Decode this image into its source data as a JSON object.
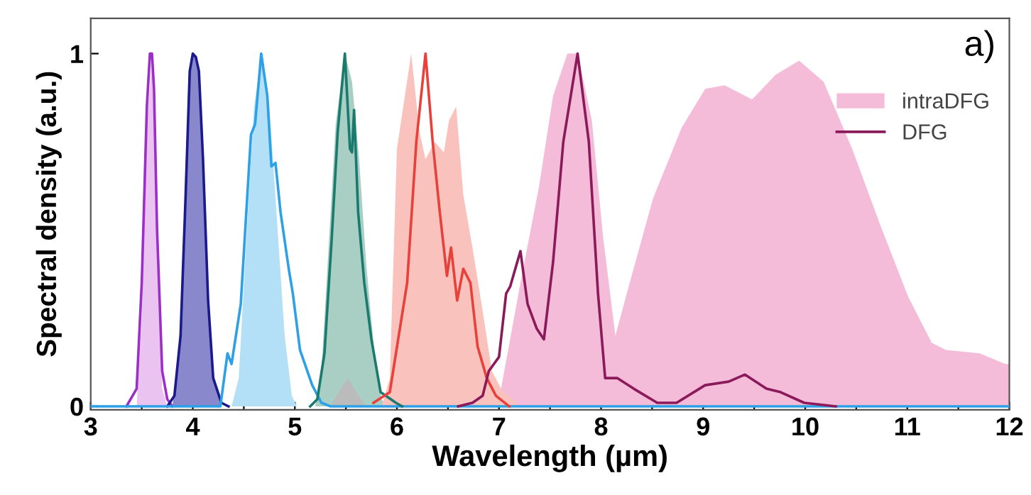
{
  "chart_data": {
    "type": "area",
    "xlabel": "Wavelength (µm)",
    "ylabel": "Spectral density (a.u.)",
    "annotations": [
      "a)"
    ],
    "xlim": [
      3,
      12
    ],
    "ylim": [
      -0.01,
      1.1
    ],
    "xticks": [
      3,
      {
        "value": 3.5,
        "label": null
      },
      4,
      {
        "value": 4.5,
        "label": null
      },
      5,
      {
        "value": 5.5,
        "label": null
      },
      6,
      {
        "value": 6.5,
        "label": null
      },
      7,
      {
        "value": 7.5,
        "label": null
      },
      8,
      {
        "value": 8.5,
        "label": null
      },
      9,
      {
        "value": 9.5,
        "label": null
      },
      10,
      {
        "value": 10.5,
        "label": null
      },
      11,
      {
        "value": 11.5,
        "label": null
      },
      12
    ],
    "yticks": [
      0,
      1
    ],
    "grid": false,
    "legend": "top right",
    "series": [
      {
        "name": "intraDFG",
        "color": "#f4bcd8",
        "x": [
          7.0,
          7.02,
          7.21,
          7.39,
          7.53,
          7.67,
          7.77,
          7.91,
          8.02,
          8.14,
          8.28,
          8.51,
          8.79,
          9.02,
          9.21,
          9.48,
          9.71,
          9.94,
          10.18,
          10.46,
          10.74,
          11.01,
          11.24,
          11.38,
          11.71,
          11.96,
          12.0
        ],
        "values": [
          0,
          0.05,
          0.35,
          0.62,
          0.88,
          1.0,
          1.0,
          0.81,
          0.48,
          0.2,
          0.35,
          0.59,
          0.79,
          0.9,
          0.91,
          0.87,
          0.94,
          0.98,
          0.92,
          0.73,
          0.51,
          0.31,
          0.18,
          0.16,
          0.15,
          0.12,
          0.12
        ]
      },
      {
        "color": "#ebc3f0",
        "x": [
          3.45,
          3.5,
          3.55,
          3.6,
          3.65,
          3.7,
          3.75
        ],
        "values": [
          0,
          0.25,
          0.8,
          0.98,
          0.5,
          0.05,
          0
        ]
      },
      {
        "color": "#8a88cc",
        "x": [
          3.8,
          3.88,
          3.93,
          3.97,
          4.0,
          4.03,
          4.06,
          4.1,
          4.15,
          4.2,
          4.28
        ],
        "values": [
          0,
          0.2,
          0.6,
          0.95,
          1.0,
          0.99,
          0.95,
          0.7,
          0.3,
          0.08,
          0
        ]
      },
      {
        "color": "#b3e0f7",
        "x": [
          4.38,
          4.45,
          4.52,
          4.6,
          4.68,
          4.75,
          4.82,
          4.9,
          4.97,
          5.02
        ],
        "values": [
          0,
          0.08,
          0.45,
          0.85,
          1.0,
          0.85,
          0.55,
          0.2,
          0.03,
          0
        ]
      },
      {
        "color": "#a9cfc4",
        "x": [
          5.2,
          5.26,
          5.32,
          5.4,
          5.49,
          5.56,
          5.63,
          5.7,
          5.78,
          5.85,
          5.9
        ],
        "values": [
          0,
          0.1,
          0.4,
          0.8,
          1.0,
          0.92,
          0.7,
          0.4,
          0.15,
          0.02,
          0
        ]
      },
      {
        "color": "#bbbbbb",
        "x": [
          5.35,
          5.45,
          5.52,
          5.6,
          5.7
        ],
        "values": [
          0,
          0.05,
          0.08,
          0.04,
          0
        ]
      },
      {
        "color": "#f9c2bd",
        "x": [
          5.85,
          5.93,
          6.0,
          6.14,
          6.22,
          6.28,
          6.37,
          6.46,
          6.51,
          6.58,
          6.65,
          6.74,
          6.84,
          6.93,
          7.02,
          7.2
        ],
        "values": [
          0,
          0.08,
          0.73,
          1.0,
          0.78,
          0.7,
          0.75,
          0.72,
          0.81,
          0.85,
          0.6,
          0.45,
          0.27,
          0.1,
          0.05,
          0
        ]
      },
      {
        "type": "line",
        "color": "#9b2fc8",
        "x": [
          3.35,
          3.45,
          3.5,
          3.55,
          3.58,
          3.6,
          3.62,
          3.65,
          3.7,
          3.75,
          3.8
        ],
        "values": [
          0,
          0.05,
          0.35,
          0.85,
          1.0,
          1.0,
          0.9,
          0.5,
          0.1,
          0.02,
          0
        ]
      },
      {
        "type": "line",
        "color": "#1a1a8c",
        "x": [
          3.75,
          3.82,
          3.88,
          3.93,
          3.97,
          4.0,
          4.03,
          4.06,
          4.1,
          4.15,
          4.2,
          4.28,
          4.35
        ],
        "values": [
          0,
          0.03,
          0.2,
          0.6,
          0.95,
          1.0,
          0.99,
          0.95,
          0.7,
          0.3,
          0.08,
          0.01,
          0
        ]
      },
      {
        "type": "line",
        "color": "#2ea0e6",
        "x": [
          3.0,
          4.27,
          4.34,
          4.38,
          4.47,
          4.57,
          4.61,
          4.67,
          4.73,
          4.77,
          4.81,
          4.86,
          4.94,
          4.98,
          5.05,
          5.17,
          5.26,
          5.35,
          12.0
        ],
        "values": [
          0,
          0,
          0.15,
          0.12,
          0.29,
          0.77,
          0.8,
          1.0,
          0.88,
          0.68,
          0.69,
          0.55,
          0.39,
          0.32,
          0.16,
          0.06,
          0.01,
          0,
          0
        ]
      },
      {
        "type": "line",
        "color": "#1a7a6e",
        "x": [
          5.15,
          5.22,
          5.29,
          5.36,
          5.42,
          5.49,
          5.54,
          5.56,
          5.58,
          5.62,
          5.68,
          5.75,
          5.84,
          5.99,
          6.05
        ],
        "values": [
          0,
          0.02,
          0.15,
          0.47,
          0.78,
          1.0,
          0.73,
          0.72,
          0.84,
          0.55,
          0.35,
          0.19,
          0.04,
          0.01,
          0
        ]
      },
      {
        "type": "line",
        "color": "#e8403a",
        "x": [
          5.77,
          5.93,
          6.1,
          6.19,
          6.28,
          6.35,
          6.42,
          6.49,
          6.53,
          6.59,
          6.65,
          6.72,
          6.79,
          6.88,
          6.97,
          7.1
        ],
        "values": [
          0.01,
          0.04,
          0.35,
          0.75,
          1.0,
          0.75,
          0.55,
          0.37,
          0.45,
          0.3,
          0.39,
          0.35,
          0.17,
          0.08,
          0.03,
          0
        ]
      },
      {
        "name": "DFG",
        "type": "line",
        "color": "#8b1a5a",
        "x": [
          6.6,
          6.74,
          6.84,
          6.9,
          7.0,
          7.07,
          7.11,
          7.21,
          7.28,
          7.37,
          7.44,
          7.53,
          7.63,
          7.77,
          7.88,
          7.97,
          8.04,
          8.16,
          8.32,
          8.55,
          8.74,
          9.02,
          9.25,
          9.41,
          9.62,
          9.76,
          9.99,
          10.3
        ],
        "values": [
          0,
          0.01,
          0.03,
          0.1,
          0.14,
          0.32,
          0.34,
          0.44,
          0.29,
          0.22,
          0.19,
          0.41,
          0.75,
          1.0,
          0.75,
          0.32,
          0.08,
          0.08,
          0.05,
          0.01,
          0.01,
          0.06,
          0.07,
          0.09,
          0.05,
          0.04,
          0.01,
          0
        ]
      }
    ]
  }
}
